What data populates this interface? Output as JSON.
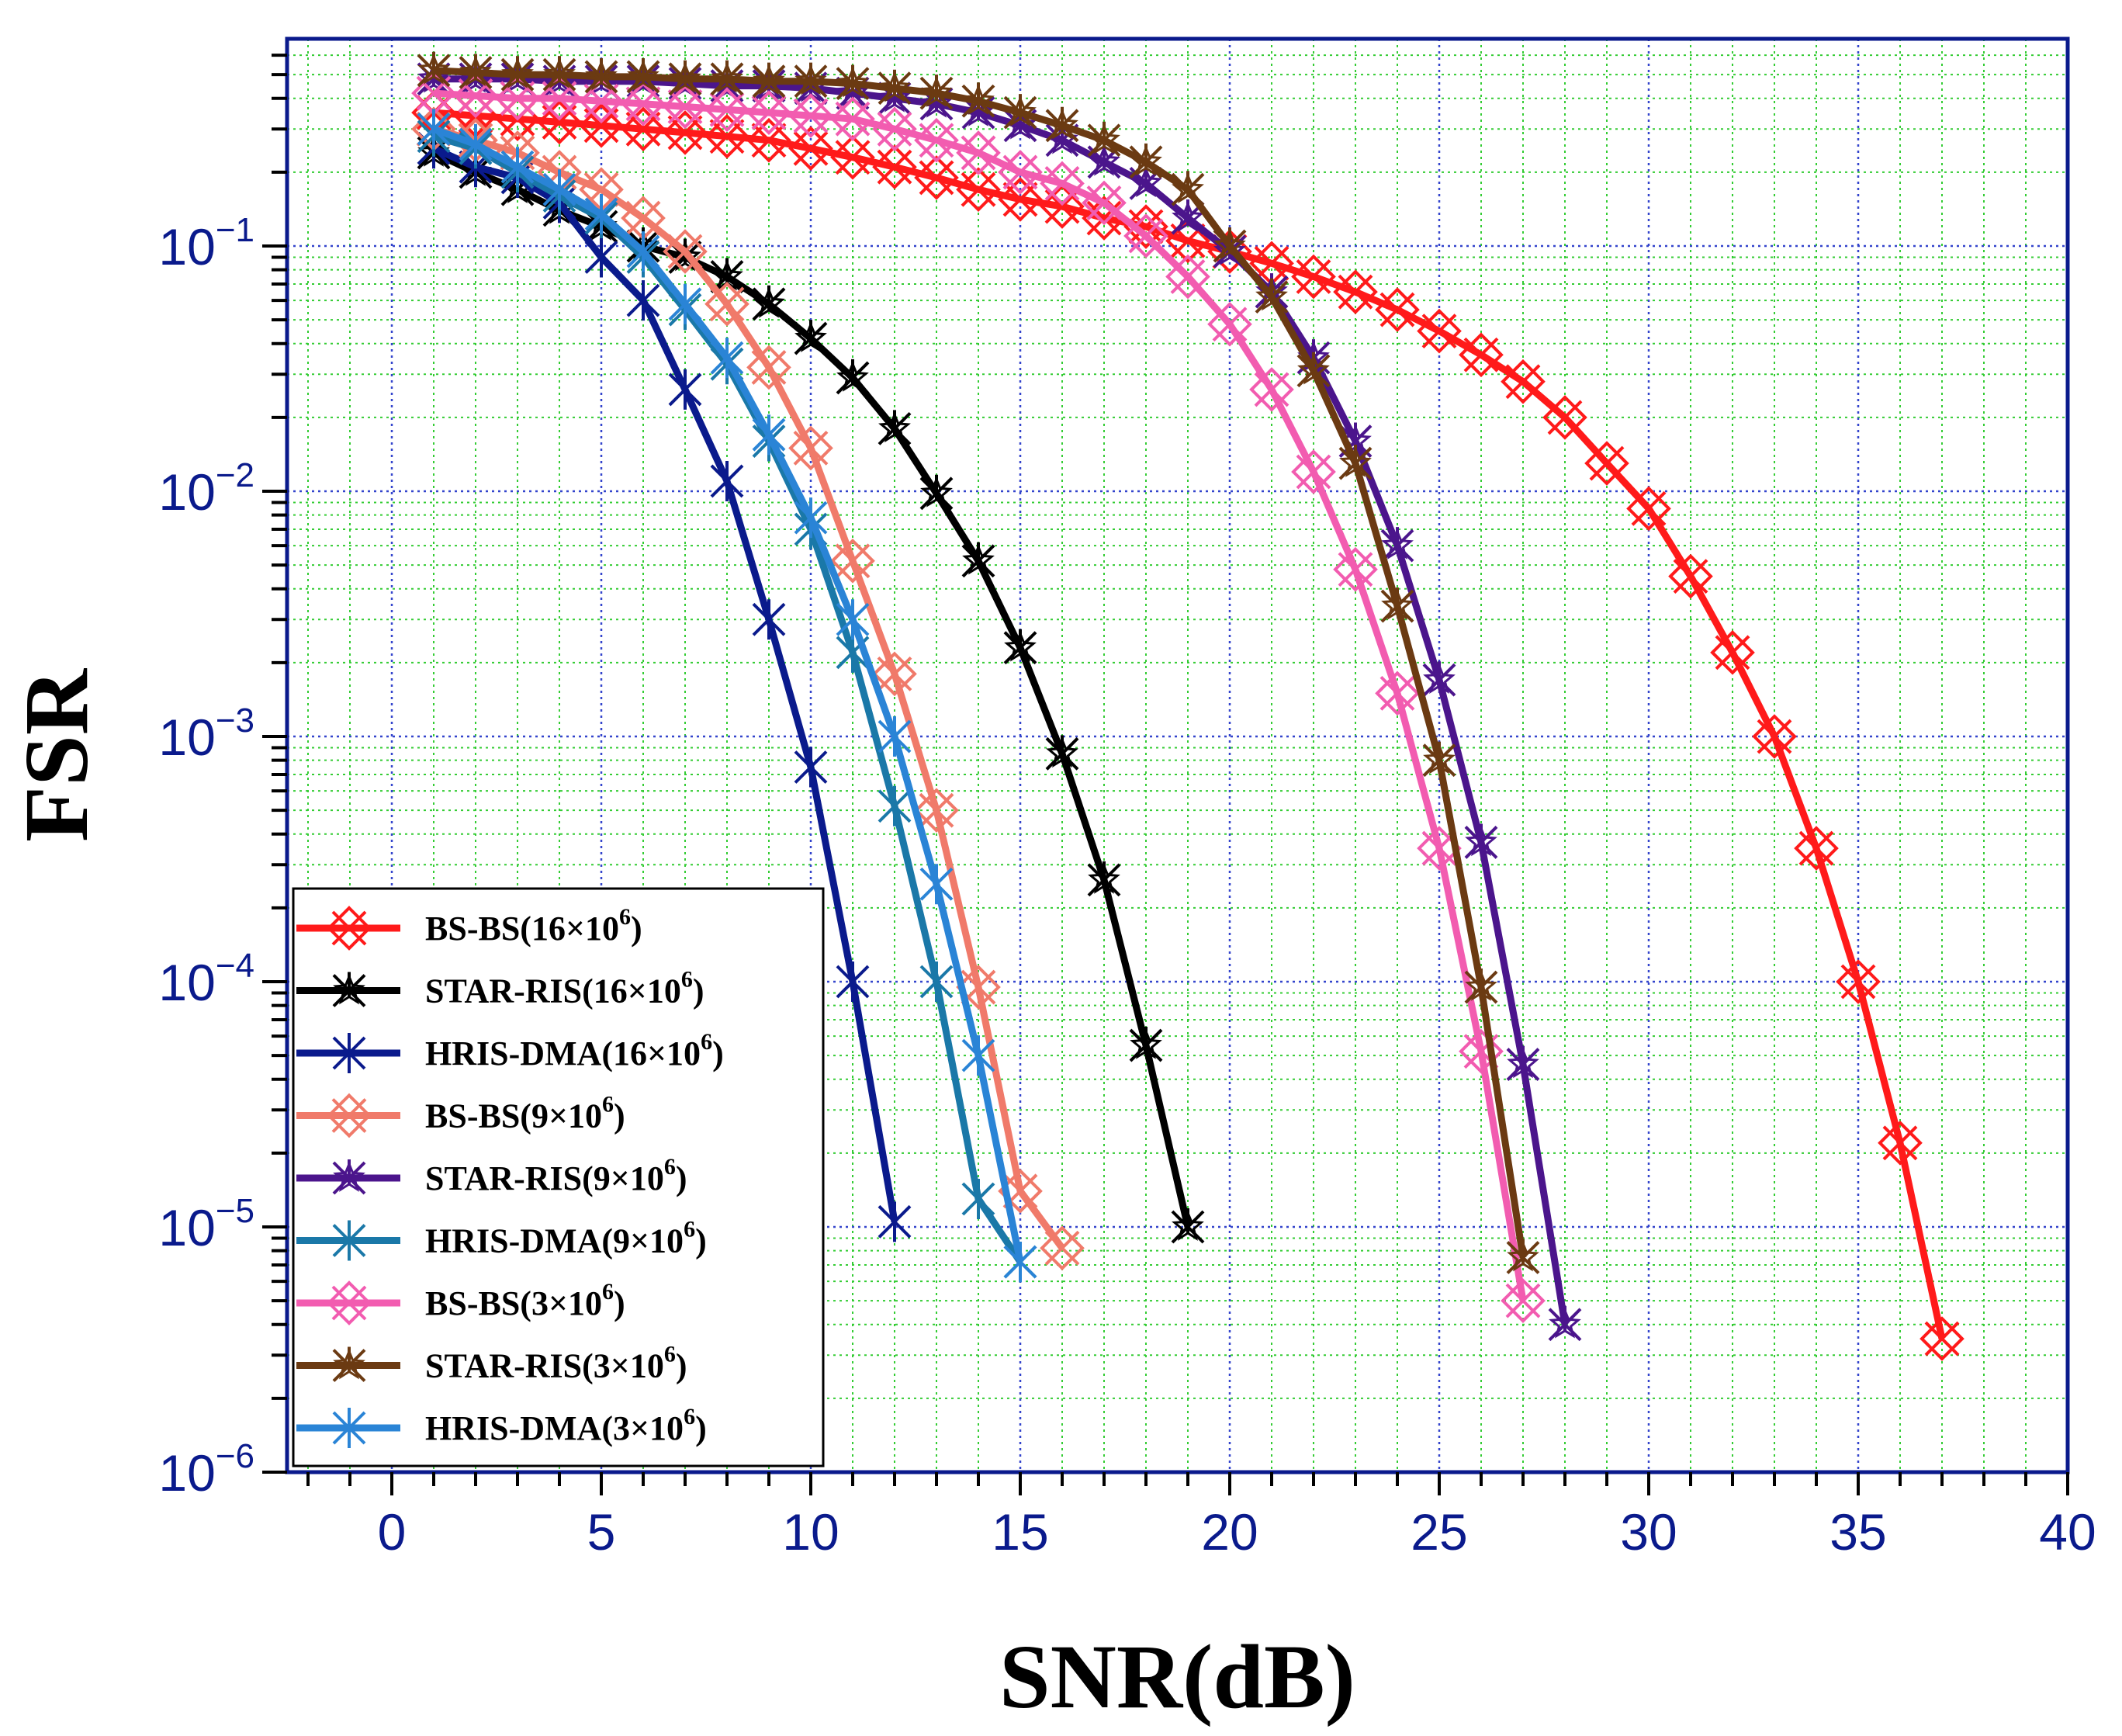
{
  "chart_data": {
    "type": "line",
    "title": "",
    "xlabel": "SNR(dB)",
    "ylabel": "FSR",
    "xlim": [
      -2.5,
      40
    ],
    "ylim": [
      1e-06,
      0.7
    ],
    "yscale": "log",
    "x_ticks": [
      0,
      5,
      10,
      15,
      20,
      25,
      30,
      35,
      40
    ],
    "y_ticks": [
      {
        "exp": -1,
        "value": 0.1,
        "base": "10"
      },
      {
        "exp": -2,
        "value": 0.01,
        "base": "10"
      },
      {
        "exp": -3,
        "value": 0.001,
        "base": "10"
      },
      {
        "exp": -4,
        "value": 0.0001,
        "base": "10"
      },
      {
        "exp": -5,
        "value": 1e-05,
        "base": "10"
      },
      {
        "exp": -6,
        "value": 1e-06,
        "base": "10"
      }
    ],
    "grid": true,
    "legend_position": "bottom-left",
    "series": [
      {
        "name": "BS-BS(16×10",
        "sup": "6",
        "close": ")",
        "color": "#ff1a1a",
        "marker": "boxx",
        "x": [
          1,
          2,
          3,
          4,
          5,
          6,
          7,
          8,
          9,
          10,
          11,
          12,
          13,
          14,
          15,
          16,
          17,
          18,
          19,
          20,
          21,
          22,
          23,
          24,
          25,
          26,
          27,
          28,
          29,
          30,
          31,
          32,
          33,
          34,
          35,
          36,
          37
        ],
        "y": [
          0.35,
          0.34,
          0.33,
          0.32,
          0.31,
          0.3,
          0.29,
          0.28,
          0.27,
          0.25,
          0.23,
          0.21,
          0.19,
          0.17,
          0.155,
          0.145,
          0.13,
          0.12,
          0.105,
          0.095,
          0.085,
          0.075,
          0.065,
          0.055,
          0.045,
          0.036,
          0.028,
          0.02,
          0.013,
          0.0085,
          0.0045,
          0.0022,
          0.001,
          0.00035,
          0.0001,
          2.2e-05,
          3.5e-06
        ]
      },
      {
        "name": "STAR-RIS(16×10",
        "sup": "6",
        "close": ")",
        "color": "#000000",
        "marker": "star",
        "x": [
          1,
          2,
          3,
          4,
          5,
          6,
          7,
          8,
          9,
          10,
          11,
          12,
          13,
          14,
          15,
          16,
          17,
          18,
          19
        ],
        "y": [
          0.24,
          0.2,
          0.17,
          0.14,
          0.12,
          0.1,
          0.09,
          0.075,
          0.058,
          0.042,
          0.029,
          0.018,
          0.0098,
          0.0052,
          0.0023,
          0.00085,
          0.00026,
          5.5e-05,
          1e-05
        ]
      },
      {
        "name": "HRIS-DMA(16×10",
        "sup": "6",
        "close": ")",
        "color": "#0a1a8c",
        "marker": "asterisk",
        "x": [
          1,
          2,
          3,
          4,
          5,
          6,
          7,
          8,
          9,
          10,
          11,
          12
        ],
        "y": [
          0.25,
          0.21,
          0.19,
          0.15,
          0.09,
          0.06,
          0.026,
          0.011,
          0.003,
          0.00075,
          0.0001,
          1.05e-05
        ]
      },
      {
        "name": "BS-BS(9×10",
        "sup": "6",
        "close": ")",
        "color": "#f07a6a",
        "marker": "boxx",
        "x": [
          1,
          2,
          3,
          4,
          5,
          6,
          7,
          8,
          9,
          10,
          11,
          12,
          13,
          14,
          15,
          16
        ],
        "y": [
          0.3,
          0.27,
          0.24,
          0.2,
          0.17,
          0.13,
          0.095,
          0.058,
          0.032,
          0.015,
          0.0052,
          0.0018,
          0.0005,
          9.5e-05,
          1.4e-05,
          8.2e-06
        ]
      },
      {
        "name": "STAR-RIS(9×10",
        "sup": "6",
        "close": ")",
        "color": "#4b158c",
        "marker": "star",
        "x": [
          1,
          2,
          3,
          4,
          5,
          6,
          7,
          8,
          9,
          10,
          11,
          12,
          13,
          14,
          15,
          16,
          17,
          18,
          19,
          20,
          21,
          22,
          23,
          24,
          25,
          26,
          27,
          28
        ],
        "y": [
          0.48,
          0.48,
          0.48,
          0.47,
          0.47,
          0.47,
          0.46,
          0.45,
          0.45,
          0.44,
          0.42,
          0.4,
          0.38,
          0.35,
          0.31,
          0.27,
          0.22,
          0.18,
          0.13,
          0.095,
          0.065,
          0.035,
          0.016,
          0.006,
          0.0017,
          0.00037,
          4.6e-05,
          4e-06
        ]
      },
      {
        "name": "HRIS-DMA(9×10",
        "sup": "6",
        "close": ")",
        "color": "#1a78a8",
        "marker": "asterisk",
        "x": [
          1,
          2,
          3,
          4,
          5,
          6,
          7,
          8,
          9,
          10,
          11,
          12,
          13,
          14,
          15
        ],
        "y": [
          0.28,
          0.25,
          0.2,
          0.16,
          0.13,
          0.09,
          0.055,
          0.033,
          0.016,
          0.007,
          0.0022,
          0.00052,
          0.0001,
          1.3e-05,
          7.2e-06
        ]
      },
      {
        "name": "BS-BS(3×10",
        "sup": "6",
        "close": ")",
        "color": "#f25cb0",
        "marker": "boxx",
        "x": [
          1,
          2,
          3,
          4,
          5,
          6,
          7,
          8,
          9,
          10,
          11,
          12,
          13,
          14,
          15,
          16,
          17,
          18,
          19,
          20,
          21,
          22,
          23,
          24,
          25,
          26,
          27
        ],
        "y": [
          0.42,
          0.41,
          0.4,
          0.4,
          0.39,
          0.38,
          0.37,
          0.36,
          0.35,
          0.34,
          0.33,
          0.3,
          0.27,
          0.24,
          0.2,
          0.18,
          0.15,
          0.11,
          0.075,
          0.048,
          0.026,
          0.012,
          0.0048,
          0.0015,
          0.00035,
          5.2e-05,
          5e-06
        ]
      },
      {
        "name": "STAR-RIS(3×10",
        "sup": "6",
        "close": ")",
        "color": "#6b3a12",
        "marker": "star",
        "x": [
          1,
          2,
          3,
          4,
          5,
          6,
          7,
          8,
          9,
          10,
          11,
          12,
          13,
          14,
          15,
          16,
          17,
          18,
          19,
          20,
          21,
          22,
          23,
          24,
          25,
          26,
          27
        ],
        "y": [
          0.52,
          0.51,
          0.5,
          0.5,
          0.49,
          0.49,
          0.48,
          0.48,
          0.47,
          0.47,
          0.46,
          0.44,
          0.42,
          0.39,
          0.35,
          0.31,
          0.27,
          0.22,
          0.17,
          0.1,
          0.062,
          0.031,
          0.013,
          0.0034,
          0.0008,
          9.5e-05,
          7.5e-06
        ]
      },
      {
        "name": "HRIS-DMA(3×10",
        "sup": "6",
        "close": ")",
        "color": "#2a84d6",
        "marker": "asterisk",
        "x": [
          1,
          2,
          3,
          4,
          5,
          6,
          7,
          8,
          9,
          10,
          11,
          12,
          13,
          14,
          15
        ],
        "y": [
          0.3,
          0.26,
          0.21,
          0.17,
          0.135,
          0.095,
          0.058,
          0.035,
          0.017,
          0.0078,
          0.003,
          0.001,
          0.00025,
          5e-05,
          7.2e-06
        ]
      }
    ]
  }
}
